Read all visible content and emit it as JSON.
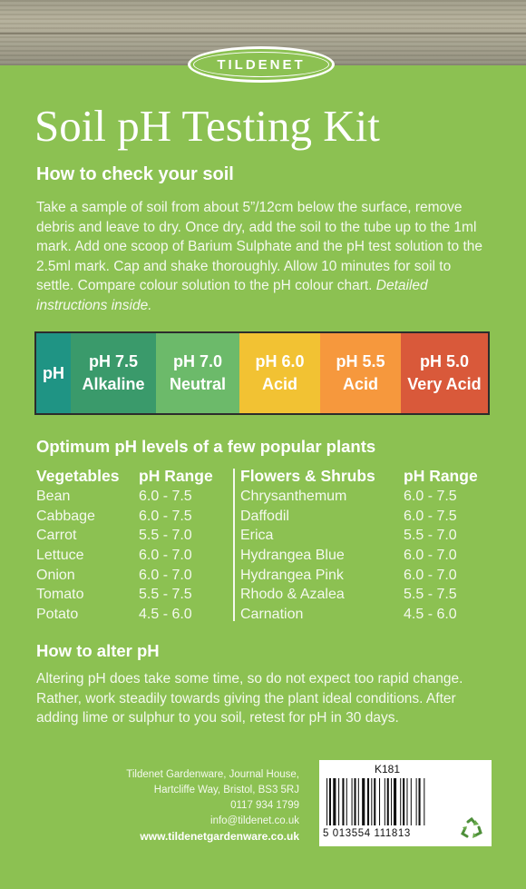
{
  "brand": "TILDENET",
  "title": "Soil pH Testing Kit",
  "how_to_check": {
    "heading": "How to check your soil",
    "text": "Take a sample of soil from about 5”/12cm below the surface, remove debris and leave to dry. Once dry, add the soil to the tube up to the 1ml mark. Add one scoop of Barium Sulphate and the pH test solution to the 2.5ml mark. Cap and shake thoroughly. Allow 10 minutes for soil to settle. Compare colour solution to the pH colour chart.",
    "note": "Detailed instructions inside."
  },
  "ph_chart": [
    {
      "line1": "pH",
      "line2": "",
      "color": "#1f9484"
    },
    {
      "line1": "pH 7.5",
      "line2": "Alkaline",
      "color": "#3a9a6b"
    },
    {
      "line1": "pH 7.0",
      "line2": "Neutral",
      "color": "#6cba6a"
    },
    {
      "line1": "pH 6.0",
      "line2": "Acid",
      "color": "#f2c233"
    },
    {
      "line1": "pH 5.5",
      "line2": "Acid",
      "color": "#f6983d"
    },
    {
      "line1": "pH 5.0",
      "line2": "Very Acid",
      "color": "#d9593a"
    }
  ],
  "optimum": {
    "heading": "Optimum pH levels of a few popular plants",
    "vegetables": {
      "header": "Vegetables",
      "range_header": "pH Range",
      "rows": [
        {
          "name": "Bean",
          "range": "6.0 - 7.5"
        },
        {
          "name": "Cabbage",
          "range": "6.0 - 7.5"
        },
        {
          "name": "Carrot",
          "range": "5.5 - 7.0"
        },
        {
          "name": "Lettuce",
          "range": "6.0 - 7.0"
        },
        {
          "name": "Onion",
          "range": "6.0 - 7.0"
        },
        {
          "name": "Tomato",
          "range": "5.5 - 7.5"
        },
        {
          "name": "Potato",
          "range": "4.5 - 6.0"
        }
      ]
    },
    "flowers": {
      "header": "Flowers & Shrubs",
      "range_header": "pH Range",
      "rows": [
        {
          "name": "Chrysanthemum",
          "range": "6.0 - 7.5"
        },
        {
          "name": "Daffodil",
          "range": "6.0 - 7.5"
        },
        {
          "name": "Erica",
          "range": "5.5 - 7.0"
        },
        {
          "name": "Hydrangea Blue",
          "range": "6.0 - 7.0"
        },
        {
          "name": "Hydrangea Pink",
          "range": "6.0 - 7.0"
        },
        {
          "name": "Rhodo & Azalea",
          "range": "5.5 - 7.5"
        },
        {
          "name": "Carnation",
          "range": "4.5 - 6.0"
        }
      ]
    }
  },
  "alter": {
    "heading": "How to alter pH",
    "text": "Altering pH does take some time, so do not expect too rapid change. Rather, work steadily towards giving the plant ideal conditions. After adding lime or sulphur to you soil, retest for pH in 30 days."
  },
  "address": {
    "line1": "Tildenet Gardenware, Journal House,",
    "line2": "Hartcliffe Way, Bristol, BS3 5RJ",
    "phone": "0117 934 1799",
    "email": "info@tildenet.co.uk",
    "web": "www.tildenetgardenware.co.uk"
  },
  "barcode": {
    "code": "K181",
    "number": "5 013554 111813",
    "icon": "recycle-icon"
  },
  "colors": {
    "background": "#8cc152"
  }
}
